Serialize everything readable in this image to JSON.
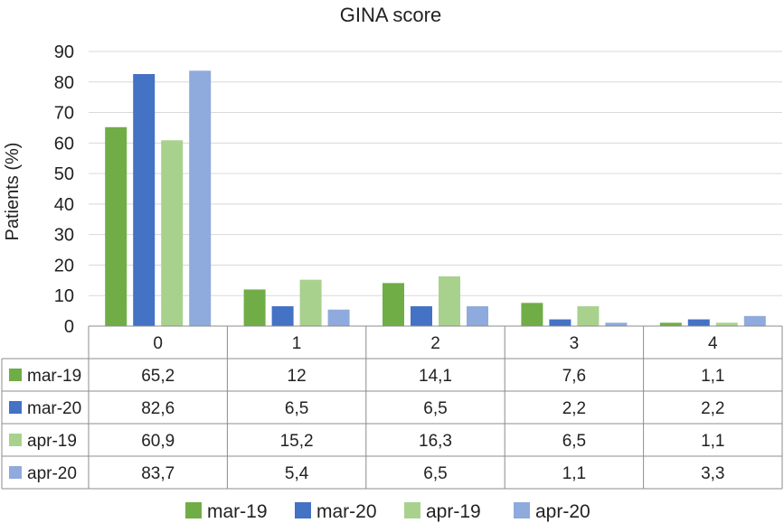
{
  "chart_data": {
    "type": "bar",
    "title": "GINA score",
    "xlabel": "",
    "ylabel": "Patients (%)",
    "ylim": [
      0,
      90
    ],
    "yticks": [
      "0",
      "10",
      "20",
      "30",
      "40",
      "50",
      "60",
      "70",
      "80",
      "90"
    ],
    "categories": [
      "0",
      "1",
      "2",
      "3",
      "4"
    ],
    "series": [
      {
        "name": "mar-19",
        "color": "#70ad47",
        "values": [
          65.2,
          12,
          14.1,
          7.6,
          1.1
        ],
        "labels": [
          "65,2",
          "12",
          "14,1",
          "7,6",
          "1,1"
        ]
      },
      {
        "name": "mar-20",
        "color": "#4472c4",
        "values": [
          82.6,
          6.5,
          6.5,
          2.2,
          2.2
        ],
        "labels": [
          "82,6",
          "6,5",
          "6,5",
          "2,2",
          "2,2"
        ]
      },
      {
        "name": "apr-19",
        "color": "#a9d18e",
        "values": [
          60.9,
          15.2,
          16.3,
          6.5,
          1.1
        ],
        "labels": [
          "60,9",
          "15,2",
          "16,3",
          "6,5",
          "1,1"
        ]
      },
      {
        "name": "apr-20",
        "color": "#8faadc",
        "values": [
          83.7,
          5.4,
          6.5,
          1.1,
          3.3
        ],
        "labels": [
          "83,7",
          "5,4",
          "6,5",
          "1,1",
          "3,3"
        ]
      }
    ],
    "grid": true,
    "legend_position": "bottom",
    "data_table": true
  }
}
